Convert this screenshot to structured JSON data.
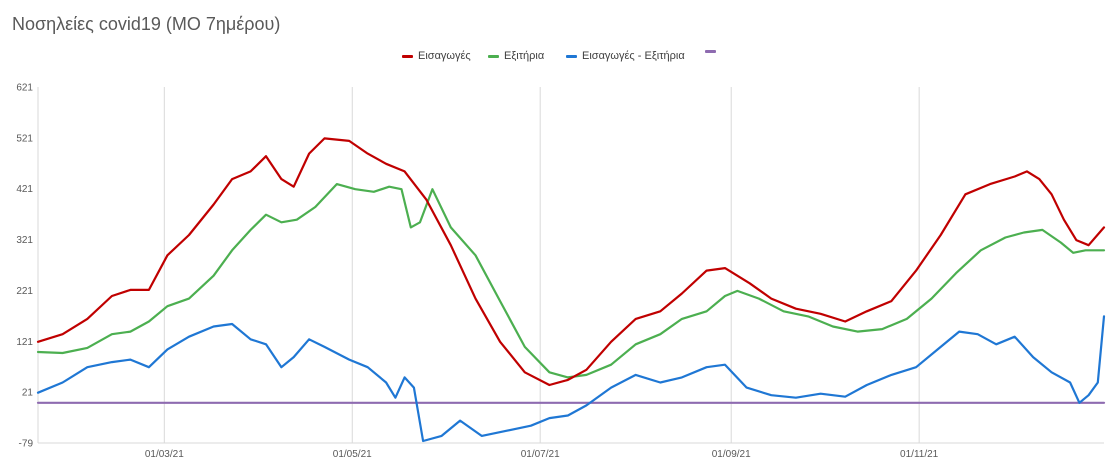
{
  "chart_data": {
    "type": "line",
    "title": "Νοσηλείες covid19 (ΜΟ 7ημέρου)",
    "xlabel": "",
    "ylabel": "",
    "x_range": [
      "2021-01-19",
      "2021-12-31"
    ],
    "ylim": [
      -79,
      621
    ],
    "y_ticks": [
      "621",
      "521",
      "421",
      "321",
      "221",
      "121",
      "21",
      "-79"
    ],
    "x_ticks": [
      {
        "date": "2021-03-01",
        "label": "01/03/21"
      },
      {
        "date": "2021-05-01",
        "label": "01/05/21"
      },
      {
        "date": "2021-07-01",
        "label": "01/07/21"
      },
      {
        "date": "2021-09-01",
        "label": "01/09/21"
      },
      {
        "date": "2021-11-01",
        "label": "01/11/21"
      }
    ],
    "grid": "vertical",
    "legend_position": "top",
    "series": [
      {
        "name": "Εισαγωγές",
        "color": "#c00000",
        "points": [
          [
            "2021-01-19",
            120
          ],
          [
            "2021-01-27",
            135
          ],
          [
            "2021-02-04",
            165
          ],
          [
            "2021-02-12",
            210
          ],
          [
            "2021-02-18",
            222
          ],
          [
            "2021-02-24",
            222
          ],
          [
            "2021-03-02",
            290
          ],
          [
            "2021-03-09",
            330
          ],
          [
            "2021-03-17",
            390
          ],
          [
            "2021-03-23",
            440
          ],
          [
            "2021-03-29",
            455
          ],
          [
            "2021-04-03",
            485
          ],
          [
            "2021-04-08",
            440
          ],
          [
            "2021-04-12",
            425
          ],
          [
            "2021-04-17",
            490
          ],
          [
            "2021-04-22",
            520
          ],
          [
            "2021-04-30",
            515
          ],
          [
            "2021-05-06",
            490
          ],
          [
            "2021-05-12",
            470
          ],
          [
            "2021-05-18",
            455
          ],
          [
            "2021-05-25",
            400
          ],
          [
            "2021-06-02",
            310
          ],
          [
            "2021-06-10",
            205
          ],
          [
            "2021-06-18",
            120
          ],
          [
            "2021-06-26",
            60
          ],
          [
            "2021-07-04",
            35
          ],
          [
            "2021-07-10",
            45
          ],
          [
            "2021-07-16",
            65
          ],
          [
            "2021-07-24",
            120
          ],
          [
            "2021-08-01",
            165
          ],
          [
            "2021-08-09",
            180
          ],
          [
            "2021-08-16",
            215
          ],
          [
            "2021-08-24",
            260
          ],
          [
            "2021-08-30",
            265
          ],
          [
            "2021-09-07",
            235
          ],
          [
            "2021-09-14",
            205
          ],
          [
            "2021-09-22",
            185
          ],
          [
            "2021-09-30",
            175
          ],
          [
            "2021-10-08",
            160
          ],
          [
            "2021-10-15",
            180
          ],
          [
            "2021-10-23",
            200
          ],
          [
            "2021-10-31",
            260
          ],
          [
            "2021-11-08",
            330
          ],
          [
            "2021-11-16",
            410
          ],
          [
            "2021-11-24",
            430
          ],
          [
            "2021-12-02",
            445
          ],
          [
            "2021-12-06",
            455
          ],
          [
            "2021-12-10",
            440
          ],
          [
            "2021-12-14",
            410
          ],
          [
            "2021-12-18",
            360
          ],
          [
            "2021-12-22",
            320
          ],
          [
            "2021-12-26",
            310
          ],
          [
            "2021-12-31",
            345
          ]
        ]
      },
      {
        "name": "Εξιτήρια",
        "color": "#4caf50",
        "points": [
          [
            "2021-01-19",
            100
          ],
          [
            "2021-01-27",
            98
          ],
          [
            "2021-02-04",
            108
          ],
          [
            "2021-02-12",
            135
          ],
          [
            "2021-02-18",
            140
          ],
          [
            "2021-02-24",
            160
          ],
          [
            "2021-03-02",
            190
          ],
          [
            "2021-03-09",
            205
          ],
          [
            "2021-03-17",
            250
          ],
          [
            "2021-03-23",
            300
          ],
          [
            "2021-03-29",
            340
          ],
          [
            "2021-04-03",
            370
          ],
          [
            "2021-04-08",
            355
          ],
          [
            "2021-04-13",
            360
          ],
          [
            "2021-04-19",
            385
          ],
          [
            "2021-04-26",
            430
          ],
          [
            "2021-05-02",
            420
          ],
          [
            "2021-05-08",
            415
          ],
          [
            "2021-05-13",
            425
          ],
          [
            "2021-05-17",
            420
          ],
          [
            "2021-05-20",
            345
          ],
          [
            "2021-05-23",
            355
          ],
          [
            "2021-05-27",
            420
          ],
          [
            "2021-06-02",
            345
          ],
          [
            "2021-06-10",
            290
          ],
          [
            "2021-06-18",
            200
          ],
          [
            "2021-06-26",
            110
          ],
          [
            "2021-07-04",
            60
          ],
          [
            "2021-07-10",
            50
          ],
          [
            "2021-07-16",
            55
          ],
          [
            "2021-07-24",
            75
          ],
          [
            "2021-08-01",
            115
          ],
          [
            "2021-08-09",
            135
          ],
          [
            "2021-08-16",
            165
          ],
          [
            "2021-08-24",
            180
          ],
          [
            "2021-08-30",
            210
          ],
          [
            "2021-09-03",
            220
          ],
          [
            "2021-09-10",
            205
          ],
          [
            "2021-09-18",
            180
          ],
          [
            "2021-09-26",
            170
          ],
          [
            "2021-10-04",
            150
          ],
          [
            "2021-10-12",
            140
          ],
          [
            "2021-10-20",
            145
          ],
          [
            "2021-10-28",
            165
          ],
          [
            "2021-11-05",
            205
          ],
          [
            "2021-11-13",
            255
          ],
          [
            "2021-11-21",
            300
          ],
          [
            "2021-11-29",
            325
          ],
          [
            "2021-12-05",
            335
          ],
          [
            "2021-12-11",
            340
          ],
          [
            "2021-12-17",
            315
          ],
          [
            "2021-12-21",
            295
          ],
          [
            "2021-12-25",
            300
          ],
          [
            "2021-12-31",
            300
          ]
        ]
      },
      {
        "name": "Εισαγωγές - Εξιτήρια",
        "color": "#1f77d4",
        "points": [
          [
            "2021-01-19",
            20
          ],
          [
            "2021-01-27",
            40
          ],
          [
            "2021-02-04",
            70
          ],
          [
            "2021-02-12",
            80
          ],
          [
            "2021-02-18",
            85
          ],
          [
            "2021-02-24",
            70
          ],
          [
            "2021-03-02",
            105
          ],
          [
            "2021-03-09",
            130
          ],
          [
            "2021-03-17",
            150
          ],
          [
            "2021-03-23",
            155
          ],
          [
            "2021-03-29",
            125
          ],
          [
            "2021-04-03",
            115
          ],
          [
            "2021-04-08",
            70
          ],
          [
            "2021-04-12",
            90
          ],
          [
            "2021-04-17",
            125
          ],
          [
            "2021-04-22",
            110
          ],
          [
            "2021-04-30",
            85
          ],
          [
            "2021-05-06",
            70
          ],
          [
            "2021-05-12",
            40
          ],
          [
            "2021-05-15",
            10
          ],
          [
            "2021-05-18",
            50
          ],
          [
            "2021-05-21",
            30
          ],
          [
            "2021-05-24",
            -75
          ],
          [
            "2021-05-30",
            -65
          ],
          [
            "2021-06-05",
            -35
          ],
          [
            "2021-06-12",
            -65
          ],
          [
            "2021-06-20",
            -55
          ],
          [
            "2021-06-28",
            -45
          ],
          [
            "2021-07-04",
            -30
          ],
          [
            "2021-07-10",
            -25
          ],
          [
            "2021-07-16",
            -5
          ],
          [
            "2021-07-24",
            30
          ],
          [
            "2021-08-01",
            55
          ],
          [
            "2021-08-09",
            40
          ],
          [
            "2021-08-16",
            50
          ],
          [
            "2021-08-24",
            70
          ],
          [
            "2021-08-30",
            75
          ],
          [
            "2021-09-06",
            30
          ],
          [
            "2021-09-14",
            15
          ],
          [
            "2021-09-22",
            10
          ],
          [
            "2021-09-30",
            18
          ],
          [
            "2021-10-08",
            12
          ],
          [
            "2021-10-15",
            35
          ],
          [
            "2021-10-23",
            55
          ],
          [
            "2021-10-31",
            70
          ],
          [
            "2021-11-08",
            110
          ],
          [
            "2021-11-14",
            140
          ],
          [
            "2021-11-20",
            135
          ],
          [
            "2021-11-26",
            115
          ],
          [
            "2021-12-02",
            130
          ],
          [
            "2021-12-08",
            90
          ],
          [
            "2021-12-14",
            60
          ],
          [
            "2021-12-20",
            40
          ],
          [
            "2021-12-23",
            0
          ],
          [
            "2021-12-26",
            15
          ],
          [
            "2021-12-29",
            40
          ],
          [
            "2021-12-31",
            170
          ]
        ]
      },
      {
        "name": "",
        "color": "#8e6bb0",
        "points": [
          [
            "2021-01-19",
            0
          ],
          [
            "2021-12-31",
            0
          ]
        ]
      }
    ]
  }
}
